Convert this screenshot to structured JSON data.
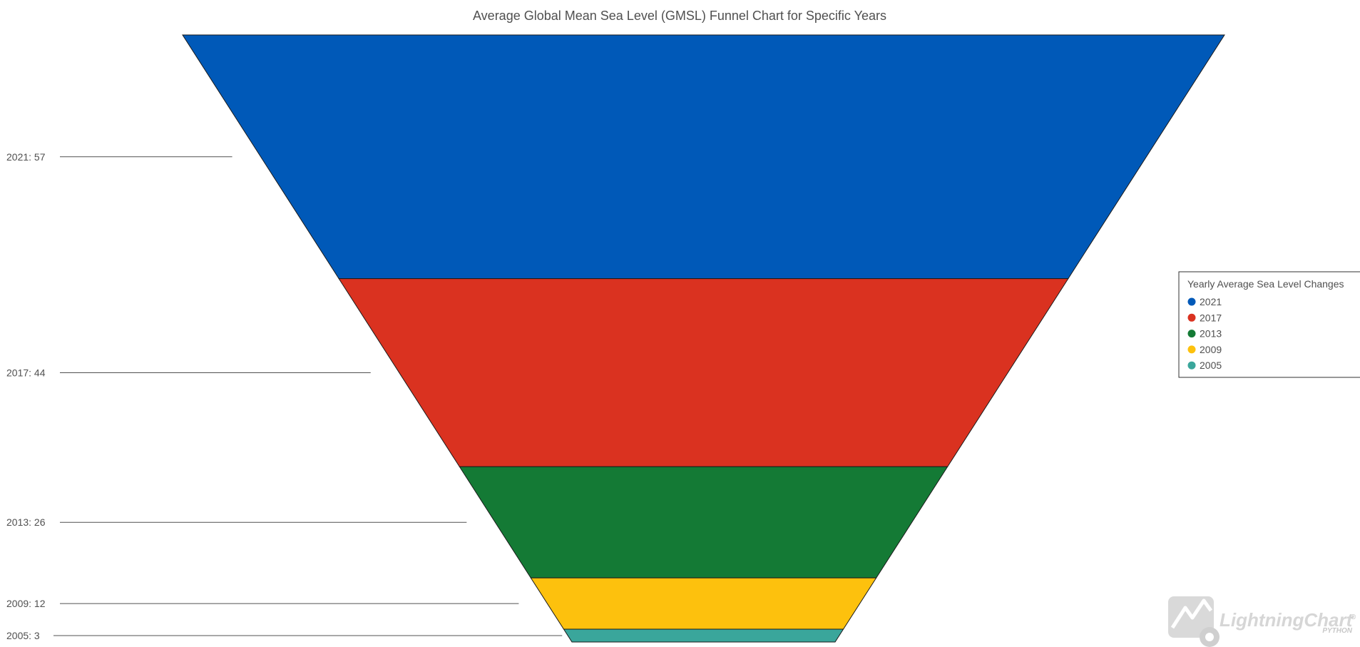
{
  "chart_data": {
    "type": "funnel",
    "title": "Average Global Mean Sea Level (GMSL) Funnel Chart for Specific Years",
    "categories": [
      "2021",
      "2017",
      "2013",
      "2009",
      "2005"
    ],
    "values": [
      57,
      44,
      26,
      12,
      3
    ],
    "labels": [
      "2021: 57",
      "2017: 44",
      "2013: 26",
      "2009: 12",
      "2005: 3"
    ],
    "colors": [
      "#0059b8",
      "#da3220",
      "#147a35",
      "#fdc10d",
      "#3aa69b"
    ],
    "legend": {
      "title": "Yearly Average Sea Level Changes",
      "position": "right",
      "entries": [
        "2021",
        "2017",
        "2013",
        "2009",
        "2005"
      ]
    }
  },
  "watermark": {
    "brand": "LightningChart",
    "sub": "PYTHON",
    "mark": "®"
  }
}
